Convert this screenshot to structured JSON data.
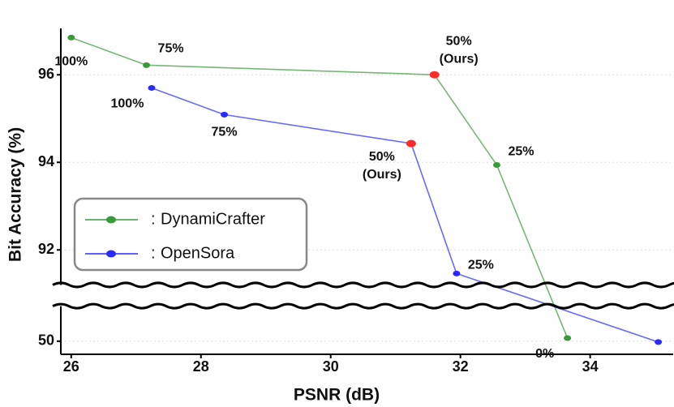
{
  "chart_data": {
    "type": "line",
    "xlabel": "PSNR (dB)",
    "ylabel": "Bit Accuracy (%)",
    "xlim": [
      25.84,
      35.28
    ],
    "xticks": [
      26,
      28,
      30,
      32,
      34
    ],
    "ylim": [
      49.7,
      97.06
    ],
    "ybreak": [
      50.8,
      91.2
    ],
    "yticks": [
      50,
      92,
      94,
      96
    ],
    "grid": true,
    "legend_position": "lower left",
    "legend_prefix": ":",
    "series": [
      {
        "name": "DynamiCrafter",
        "color": "#3a9a3a",
        "x": [
          26.0,
          27.16,
          31.6,
          32.56,
          33.65
        ],
        "values": [
          96.85,
          96.22,
          96.0,
          93.94,
          50.07
        ],
        "point_labels": [
          [
            "100%"
          ],
          [
            "75%"
          ],
          [
            "50%",
            "(Ours)"
          ],
          [
            "25%"
          ],
          [
            "0%"
          ]
        ],
        "highlight": {
          "index": 2,
          "color": "#ff2a2a"
        }
      },
      {
        "name": "OpenSora",
        "color": "#2a2aff",
        "x": [
          27.24,
          28.36,
          31.24,
          31.94,
          35.05
        ],
        "values": [
          95.7,
          95.09,
          94.43,
          91.46,
          49.98
        ],
        "point_labels": [
          [
            "100%"
          ],
          [
            "75%"
          ],
          [
            "50%",
            "(Ours)"
          ],
          [
            "25%"
          ],
          null
        ],
        "highlight": {
          "index": 2,
          "color": "#ff2a2a"
        }
      }
    ]
  }
}
